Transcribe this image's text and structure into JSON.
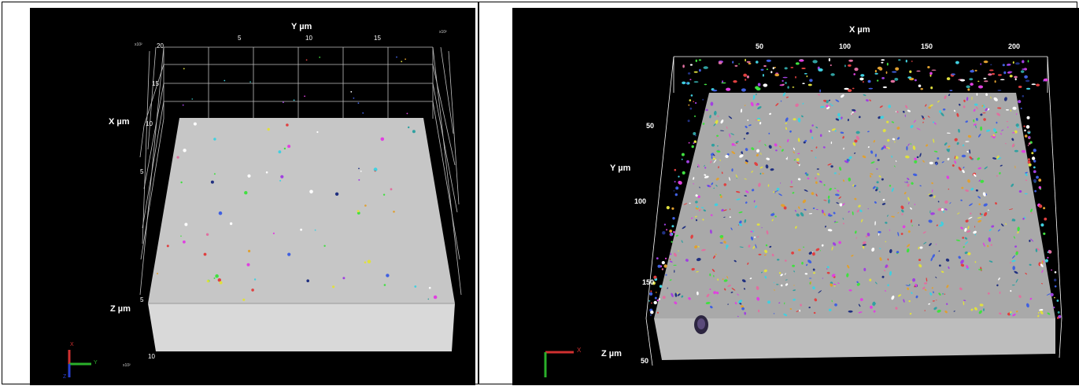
{
  "left_panel": {
    "axis_labels": {
      "y": "Y µm",
      "x": "X µm",
      "z": "Z µm"
    },
    "y_ticks": [
      "5",
      "10",
      "15"
    ],
    "x_ticks": [
      "20",
      "15",
      "10",
      "5"
    ],
    "z_ticks": [
      "5",
      "10"
    ],
    "scale_exponents": [
      "x10²",
      "x10²",
      "x10²"
    ],
    "gizmo": {
      "x": "X",
      "y": "Y",
      "z": "Z"
    },
    "colors": {
      "background": "#000000",
      "volume_top": "#c6c6c6",
      "volume_front": "#d9d9d9",
      "grid": "#bfbfbf"
    }
  },
  "right_panel": {
    "axis_labels": {
      "x": "X µm",
      "y": "Y µm",
      "z": "Z µm"
    },
    "x_ticks": [
      "50",
      "100",
      "150",
      "200"
    ],
    "y_ticks": [
      "50",
      "100",
      "150"
    ],
    "z_ticks": [
      "50"
    ],
    "gizmo": {
      "x": "X"
    },
    "colors": {
      "background": "#000000",
      "volume_top": "#a9a9a9",
      "volume_front": "#bdbdbd",
      "grid": "#ffffff"
    }
  }
}
